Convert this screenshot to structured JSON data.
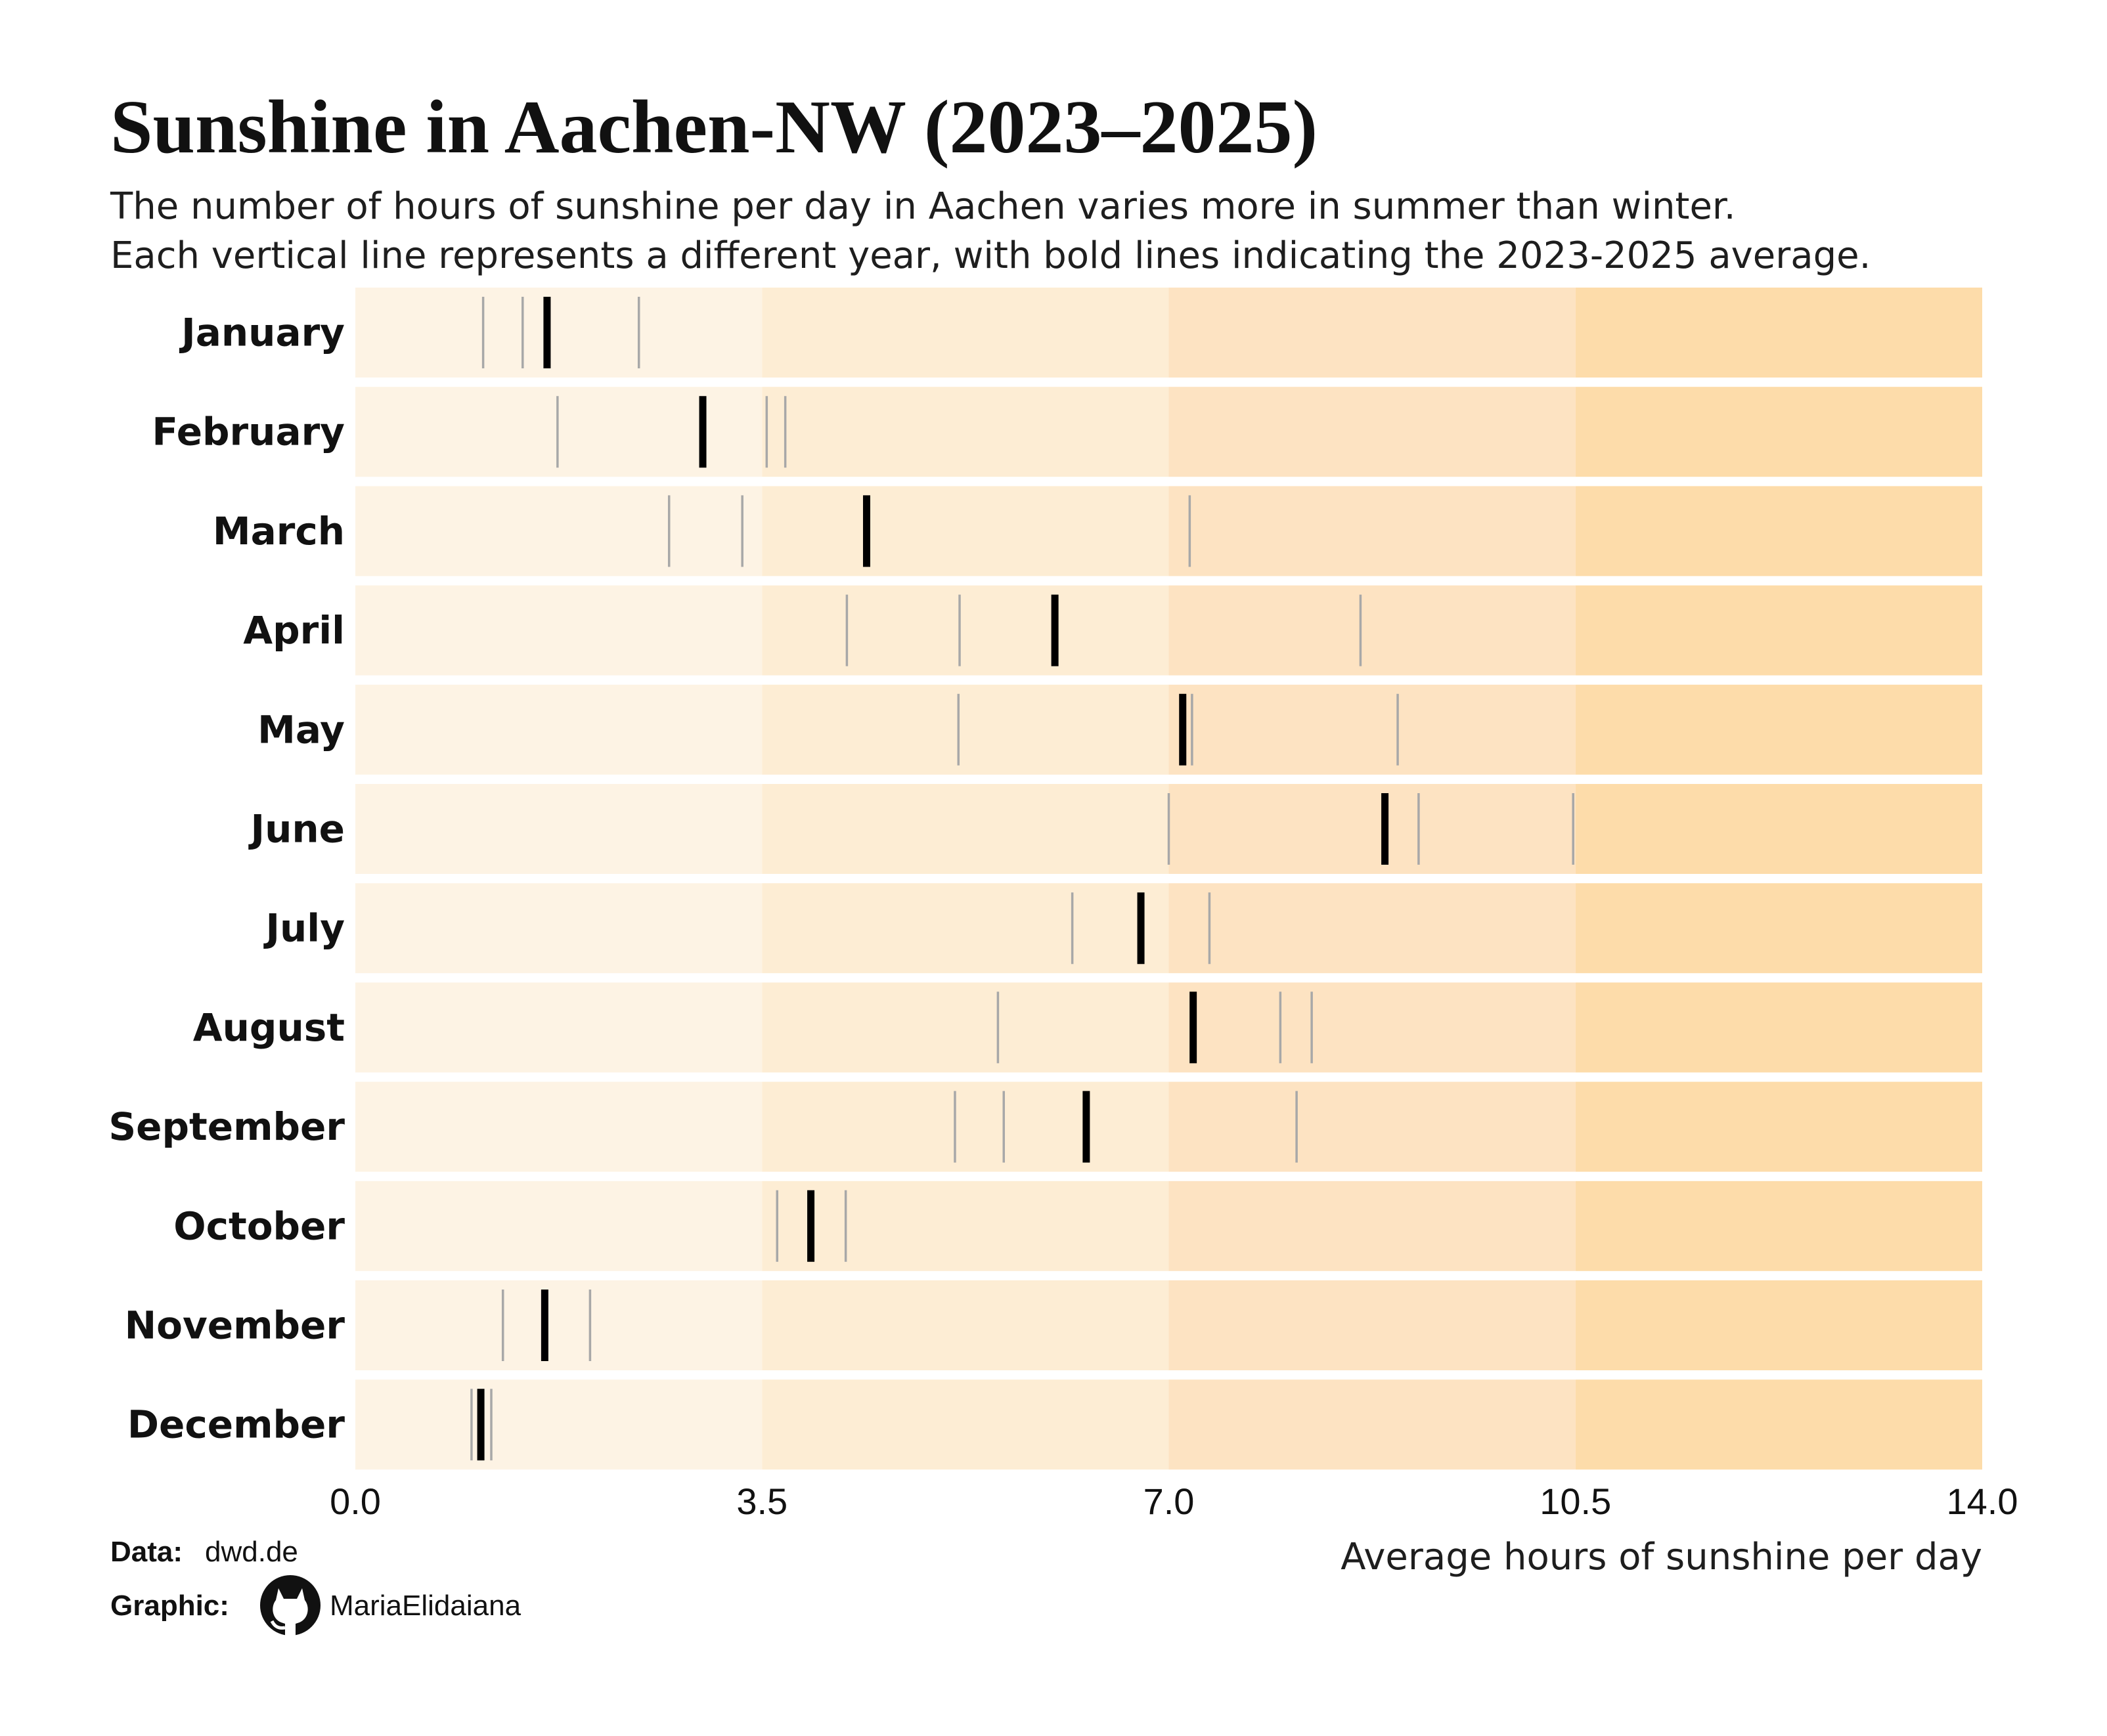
{
  "chart_data": {
    "type": "strip",
    "title": "Sunshine in Aachen-NW (2023–2025)",
    "subtitle": [
      "The number of hours of sunshine per day in Aachen varies more in summer than winter.",
      "Each vertical line represents a different year, with bold lines indicating the 2023-2025 average."
    ],
    "xlabel": "Average hours of sunshine per day",
    "xlim": [
      0,
      14
    ],
    "xticks": [
      "0.0",
      "3.5",
      "7.0",
      "10.5",
      "14.0"
    ],
    "band_breaks": [
      0,
      3.5,
      7,
      10.5,
      14
    ],
    "band_colors": [
      "#fdf3e4",
      "#fdedd4",
      "#fde3c2",
      "#fddcaa"
    ],
    "year_line_color": "#a8a8a8",
    "average_line_color": "#000000",
    "categories": [
      "January",
      "February",
      "March",
      "April",
      "May",
      "June",
      "July",
      "August",
      "September",
      "October",
      "November",
      "December"
    ],
    "years": [
      [
        1.1,
        1.44,
        2.44
      ],
      [
        1.74,
        3.54,
        3.7
      ],
      [
        2.7,
        3.33,
        7.18
      ],
      [
        4.23,
        5.2,
        8.65
      ],
      [
        5.19,
        7.2,
        8.97
      ],
      [
        7.0,
        9.15,
        10.48
      ],
      [
        6.17,
        7.35
      ],
      [
        5.53,
        7.96,
        8.23
      ],
      [
        5.16,
        5.58,
        8.1
      ],
      [
        3.63,
        4.22
      ],
      [
        1.27,
        2.02
      ],
      [
        1.0,
        1.17
      ]
    ],
    "averages": [
      1.65,
      2.99,
      4.4,
      6.02,
      7.12,
      8.86,
      6.76,
      7.21,
      6.29,
      3.92,
      1.63,
      1.08
    ]
  },
  "credits": {
    "data_label": "Data:",
    "data_value": "dwd.de",
    "graphic_label": "Graphic:",
    "graphic_icon": "github-icon",
    "graphic_value": "MariaElidaiana"
  }
}
